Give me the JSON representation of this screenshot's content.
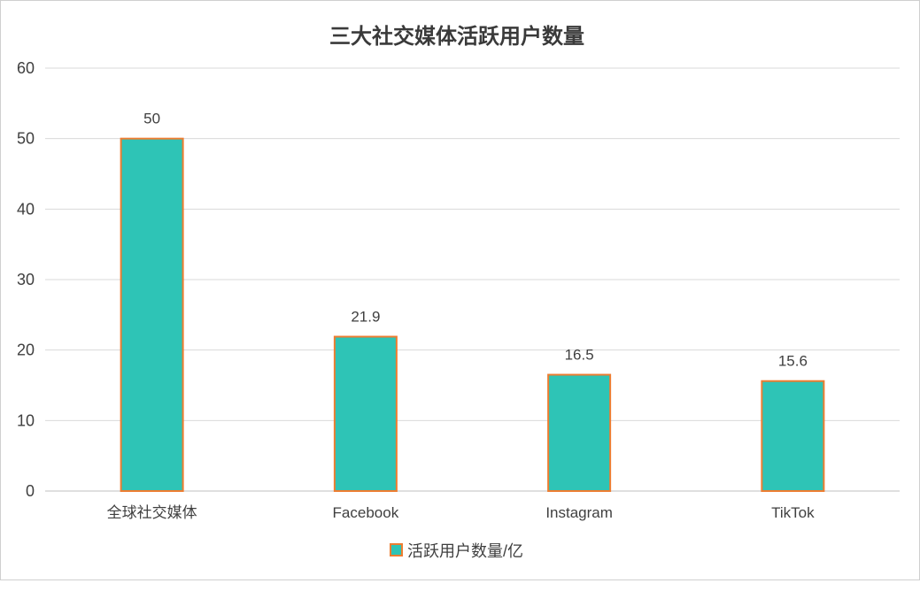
{
  "chart_data": {
    "type": "bar",
    "title": "三大社交媒体活跃用户数量",
    "categories": [
      "全球社交媒体",
      "Facebook",
      "Instagram",
      "TikTok"
    ],
    "series": [
      {
        "name": "活跃用户数量/亿",
        "values": [
          50,
          21.9,
          16.5,
          15.6
        ]
      }
    ],
    "data_labels": [
      "50",
      "21.9",
      "16.5",
      "15.6"
    ],
    "yticks": [
      "0",
      "10",
      "20",
      "30",
      "40",
      "50",
      "60"
    ],
    "ylim": [
      0,
      60
    ],
    "grid": true,
    "legend": "bottom-center",
    "colors": {
      "bar_fill": "#2ec4b6",
      "bar_stroke": "#ed7d31",
      "grid": "#d9d9d9",
      "axis": "#bfbfbf"
    }
  }
}
